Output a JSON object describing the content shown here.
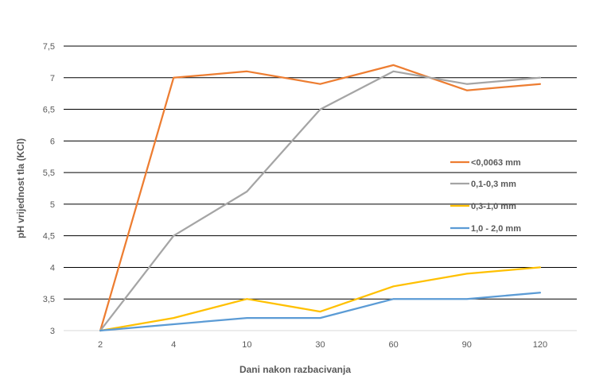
{
  "chart_data": {
    "type": "line",
    "title": "",
    "xlabel": "Dani nakon razbacivanja",
    "ylabel": "pH vrijednost tla (KCl)",
    "categories": [
      "2",
      "4",
      "10",
      "30",
      "60",
      "90",
      "120"
    ],
    "yticks": [
      "3",
      "3,5",
      "4",
      "4,5",
      "5",
      "5,5",
      "6",
      "6,5",
      "7",
      "7,5"
    ],
    "ylim": [
      3,
      7.5
    ],
    "grid": true,
    "legend_position": "right",
    "series": [
      {
        "name": "<0,0063 mm",
        "color": "#ED7D31",
        "values": [
          3.0,
          7.0,
          7.1,
          6.9,
          7.2,
          6.8,
          6.9
        ]
      },
      {
        "name": "0,1-0,3 mm",
        "color": "#A5A5A5",
        "values": [
          3.0,
          4.5,
          5.2,
          6.5,
          7.1,
          6.9,
          7.0
        ]
      },
      {
        "name": "0,3-1,0 mm",
        "color": "#FFC000",
        "values": [
          3.0,
          3.2,
          3.5,
          3.3,
          3.7,
          3.9,
          4.0
        ]
      },
      {
        "name": "1,0 - 2,0 mm",
        "color": "#5B9BD5",
        "values": [
          3.0,
          3.1,
          3.2,
          3.2,
          3.5,
          3.5,
          3.6
        ]
      }
    ]
  }
}
